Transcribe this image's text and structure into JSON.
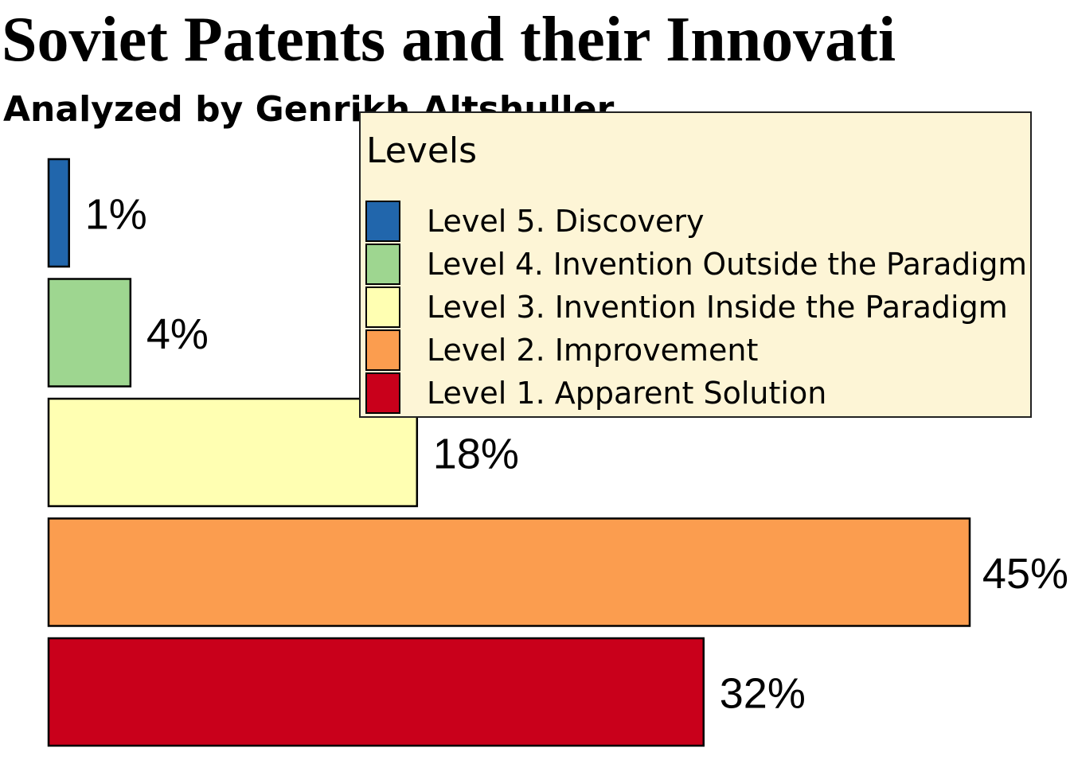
{
  "chart_data": {
    "type": "bar",
    "orientation": "horizontal",
    "title": "Soviet Patents and their Innovati",
    "subtitle": "Analyzed by Genrikh Altshuller",
    "categories": [
      "Level 5. Discovery",
      "Level 4. Invention Outside the Paradigm",
      "Level 3. Invention Inside the Paradigm",
      "Level 2. Improvement",
      "Level 1. Apparent Solution"
    ],
    "values": [
      1,
      4,
      18,
      45,
      32
    ],
    "data_labels": [
      "1%",
      "4%",
      "18%",
      "45%",
      "32%"
    ],
    "colors": [
      "#2166ac",
      "#9ed690",
      "#ffffb2",
      "#fb9d4f",
      "#c9001b"
    ],
    "xlim": [
      0,
      45
    ],
    "grid": false,
    "legend": {
      "title": "Levels",
      "placement": "top-right",
      "background": "#fdf5d6"
    }
  }
}
